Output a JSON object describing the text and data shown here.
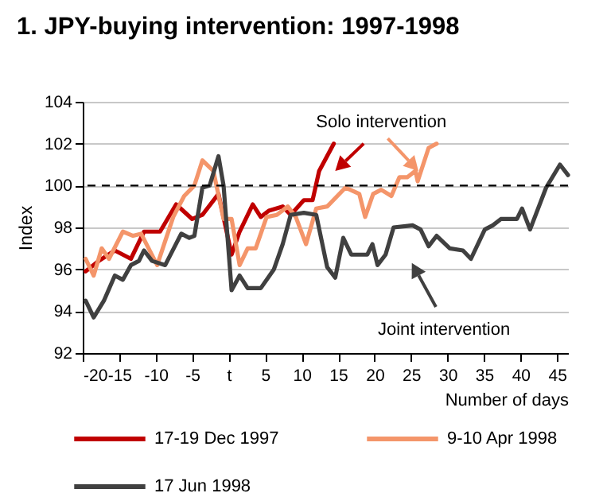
{
  "chart_data": {
    "type": "line",
    "title": "1. JPY-buying intervention: 1997-1998",
    "xlabel": "Number of days",
    "ylabel": "Index",
    "xlim": [
      -20,
      46.5
    ],
    "xticks": [
      -20,
      -15,
      -10,
      -5,
      {
        "value": 0,
        "label": "t"
      },
      5,
      10,
      15,
      20,
      25,
      30,
      35,
      40,
      45
    ],
    "ylim": [
      92,
      104
    ],
    "yticks": [
      92,
      94,
      96,
      98,
      100,
      102,
      104
    ],
    "grid": "y",
    "legend": "bottom",
    "annotations": [
      "Solo intervention",
      "Joint intervention"
    ],
    "ref_lines": [
      {
        "axis": "y",
        "value": 100,
        "color": "#000000",
        "line_style": "dashed"
      }
    ],
    "series": [
      {
        "name": "17-19 Dec 1997",
        "color": "#c00000",
        "x": [
          -19.6,
          -17.8,
          -15.6,
          -13.4,
          -11.6,
          -9.4,
          -7.2,
          -5,
          -3.6,
          -1.4,
          0.4,
          1.5,
          3.3,
          4.4,
          5.5,
          7.4,
          8.5,
          10.3,
          11.5,
          12.4,
          14.4
        ],
        "values": [
          95.9,
          96.4,
          96.9,
          96.5,
          97.8,
          97.8,
          99.1,
          98.4,
          98.6,
          99.6,
          96.7,
          97.8,
          99.1,
          98.5,
          98.8,
          99.0,
          98.6,
          99.3,
          99.3,
          100.7,
          102.0
        ]
      },
      {
        "name": "9-10 Apr 1998",
        "color": "#f4956a",
        "x": [
          -19.6,
          -18.5,
          -17.4,
          -16.4,
          -14.5,
          -13.1,
          -12,
          -9.8,
          -7.6,
          -6.1,
          -4.7,
          -3.6,
          -2.1,
          -0.7,
          0.4,
          1.5,
          2.6,
          3.7,
          5.2,
          6.6,
          8.1,
          9.2,
          10.6,
          12,
          13.5,
          16,
          17.9,
          18.7,
          19.8,
          20.9,
          22.3,
          23.4,
          24.5,
          25.6,
          25.9,
          27.4,
          28.5
        ],
        "values": [
          96.5,
          95.7,
          97.0,
          96.5,
          97.8,
          97.6,
          97.7,
          96.2,
          98.5,
          99.5,
          100.0,
          101.2,
          100.7,
          98.4,
          98.4,
          96.2,
          97.0,
          97.0,
          98.5,
          98.6,
          99.0,
          98.5,
          97.2,
          98.9,
          99.0,
          99.9,
          99.6,
          98.5,
          99.6,
          99.8,
          99.5,
          100.4,
          100.4,
          100.7,
          100.2,
          101.8,
          102.0
        ]
      },
      {
        "name": "17 Jun 1998",
        "color": "#404040",
        "x": [
          -19.6,
          -18.5,
          -17.1,
          -15.6,
          -14.5,
          -13.4,
          -12.3,
          -11.6,
          -10.5,
          -8.7,
          -6.5,
          -5.4,
          -4.7,
          -3.6,
          -2.6,
          -1.4,
          -0.7,
          0.4,
          1.5,
          2.6,
          4.4,
          6.2,
          7.4,
          8.5,
          10.3,
          12,
          13.5,
          14.6,
          15.7,
          16.8,
          19,
          19.7,
          20.4,
          21.5,
          22.6,
          25.2,
          26.3,
          27.4,
          28.5,
          30.3,
          32.1,
          33.2,
          35.1,
          36.2,
          37.3,
          39.5,
          40.2,
          41.3,
          43.5,
          45.4,
          46.5
        ],
        "values": [
          94.5,
          93.7,
          94.5,
          95.7,
          95.5,
          96.2,
          96.4,
          96.9,
          96.4,
          96.2,
          97.7,
          97.5,
          97.6,
          99.9,
          100.0,
          101.4,
          100.0,
          95.0,
          95.7,
          95.1,
          95.1,
          96.0,
          97.2,
          98.6,
          98.7,
          98.6,
          96.1,
          95.6,
          97.5,
          96.7,
          96.7,
          97.2,
          96.2,
          96.7,
          98.0,
          98.1,
          97.9,
          97.1,
          97.6,
          97.0,
          96.9,
          96.5,
          97.9,
          98.1,
          98.4,
          98.4,
          98.9,
          97.9,
          99.9,
          101.0,
          100.5
        ]
      }
    ]
  }
}
